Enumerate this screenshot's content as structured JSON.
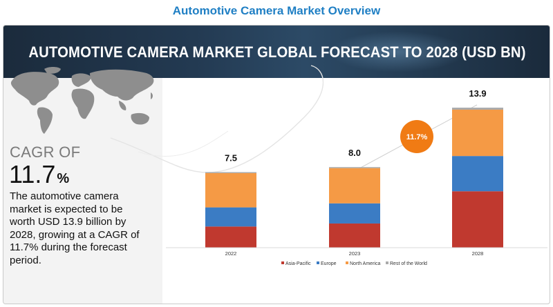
{
  "page_title": "Automotive Camera Market Overview",
  "banner_title": "AUTOMOTIVE CAMERA MARKET GLOBAL FORECAST TO 2028 (USD BN)",
  "summary": {
    "cagr_label": "CAGR OF",
    "cagr_value": "11.7",
    "cagr_unit": "%",
    "description": "The automotive camera market is expected to be worth USD 13.9 billion by 2028, growing at a CAGR of 11.7% during the forecast period."
  },
  "colors": {
    "asia_pacific": "#c0392f",
    "europe": "#3b7cc4",
    "north_america": "#f59a45",
    "rest_of_world": "#aaaaaa",
    "cagr_bubble": "#f07b14",
    "banner": "#233a52",
    "title": "#1f7fc4"
  },
  "chart_data": {
    "type": "bar",
    "stacked": true,
    "title": "AUTOMOTIVE CAMERA MARKET GLOBAL FORECAST TO 2028 (USD BN)",
    "categories": [
      "2022",
      "2023",
      "2028"
    ],
    "totals": [
      "7.5",
      "8.0",
      "13.9"
    ],
    "series": [
      {
        "name": "Asia-Pacific",
        "values": [
          2.1,
          2.4,
          5.6
        ]
      },
      {
        "name": "Europe",
        "values": [
          1.9,
          2.0,
          3.5
        ]
      },
      {
        "name": "North America",
        "values": [
          3.4,
          3.5,
          4.6
        ]
      },
      {
        "name": "Rest of the World",
        "values": [
          0.1,
          0.1,
          0.2
        ]
      }
    ],
    "annotation": "11.7%",
    "xlabel": "",
    "ylabel": "",
    "ylim": [
      0,
      13.9
    ],
    "legend_position": "bottom",
    "grid": false
  }
}
